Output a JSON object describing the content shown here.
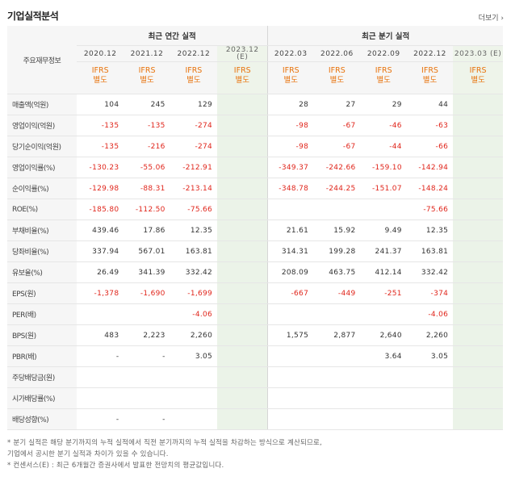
{
  "header": {
    "title": "기업실적분석",
    "more_label": "더보기",
    "more_icon": "chevron-right-icon"
  },
  "table": {
    "corner_label": "주요재무정보",
    "annual_title": "최근 연간 실적",
    "quarter_title": "최근 분기 실적",
    "annual_periods": [
      "2020.12",
      "2021.12",
      "2022.12",
      "2023.12\n(E)"
    ],
    "quarter_periods": [
      "2022.03",
      "2022.06",
      "2022.09",
      "2022.12",
      "2023.03 (E)"
    ],
    "ifrs_label": "IFRS\n별도",
    "rows": [
      {
        "label": "매출액(억원)",
        "values": [
          "104",
          "245",
          "129",
          "",
          "28",
          "27",
          "29",
          "44",
          ""
        ]
      },
      {
        "label": "영업이익(억원)",
        "values": [
          "-135",
          "-135",
          "-274",
          "",
          "-98",
          "-67",
          "-46",
          "-63",
          ""
        ]
      },
      {
        "label": "당기순이익(억원)",
        "values": [
          "-135",
          "-216",
          "-274",
          "",
          "-98",
          "-67",
          "-44",
          "-66",
          ""
        ]
      },
      {
        "label": "영업이익률(%)",
        "values": [
          "-130.23",
          "-55.06",
          "-212.91",
          "",
          "-349.37",
          "-242.66",
          "-159.10",
          "-142.94",
          ""
        ]
      },
      {
        "label": "순이익률(%)",
        "values": [
          "-129.98",
          "-88.31",
          "-213.14",
          "",
          "-348.78",
          "-244.25",
          "-151.07",
          "-148.24",
          ""
        ]
      },
      {
        "label": "ROE(%)",
        "values": [
          "-185.80",
          "-112.50",
          "-75.66",
          "",
          "",
          "",
          "",
          "-75.66",
          ""
        ]
      },
      {
        "label": "부채비율(%)",
        "values": [
          "439.46",
          "17.86",
          "12.35",
          "",
          "21.61",
          "15.92",
          "9.49",
          "12.35",
          ""
        ]
      },
      {
        "label": "당좌비율(%)",
        "values": [
          "337.94",
          "567.01",
          "163.81",
          "",
          "314.31",
          "199.28",
          "241.37",
          "163.81",
          ""
        ]
      },
      {
        "label": "유보율(%)",
        "values": [
          "26.49",
          "341.39",
          "332.42",
          "",
          "208.09",
          "463.75",
          "412.14",
          "332.42",
          ""
        ]
      },
      {
        "label": "EPS(원)",
        "values": [
          "-1,378",
          "-1,690",
          "-1,699",
          "",
          "-667",
          "-449",
          "-251",
          "-374",
          ""
        ]
      },
      {
        "label": "PER(배)",
        "values": [
          "",
          "",
          "-4.06",
          "",
          "",
          "",
          "",
          "-4.06",
          ""
        ]
      },
      {
        "label": "BPS(원)",
        "values": [
          "483",
          "2,223",
          "2,260",
          "",
          "1,575",
          "2,877",
          "2,640",
          "2,260",
          ""
        ]
      },
      {
        "label": "PBR(배)",
        "values": [
          "-",
          "-",
          "3.05",
          "",
          "",
          "",
          "3.64",
          "3.05",
          ""
        ]
      },
      {
        "label": "주당배당금(원)",
        "values": [
          "",
          "",
          "",
          "",
          "",
          "",
          "",
          "",
          ""
        ]
      },
      {
        "label": "시가배당률(%)",
        "values": [
          "",
          "",
          "",
          "",
          "",
          "",
          "",
          "",
          ""
        ]
      },
      {
        "label": "배당성향(%)",
        "values": [
          "-",
          "-",
          "",
          "",
          "",
          "",
          "",
          "",
          ""
        ]
      }
    ]
  },
  "notes": [
    "* 분기 실적은 해당 분기까지의 누적 실적에서 직전 분기까지의 누적 실적을 차감하는 방식으로 계산되므로,",
    "  기업에서 공시한 분기 실적과 차이가 있을 수 있습니다.",
    "* 컨센서스(E) : 최근 6개월간 증권사에서 발표한 전망치의 평균값입니다."
  ],
  "colors": {
    "negative": "#e0251b",
    "ifrs": "#e8730c",
    "estimate_bg": "#ebf3e8"
  }
}
